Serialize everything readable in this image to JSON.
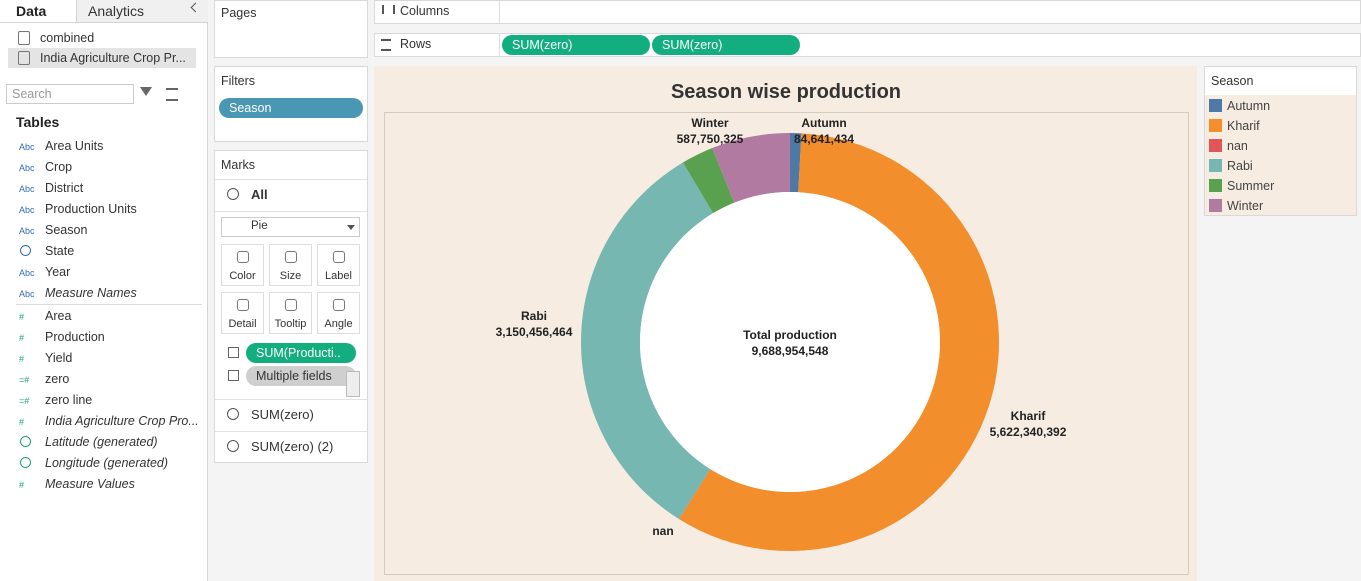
{
  "ui": {
    "data_pane": {
      "tabs": [
        "Data",
        "Analytics"
      ],
      "sources": [
        "combined",
        "India Agriculture Crop Pr..."
      ],
      "search_placeholder": "Search",
      "tables_heading": "Tables",
      "dimensions": [
        {
          "icon": "Abc",
          "name": "Area Units"
        },
        {
          "icon": "Abc",
          "name": "Crop"
        },
        {
          "icon": "Abc",
          "name": "District"
        },
        {
          "icon": "Abc",
          "name": "Production Units"
        },
        {
          "icon": "Abc",
          "name": "Season"
        },
        {
          "name": "State"
        },
        {
          "icon": "Abc",
          "name": "Year"
        },
        {
          "icon": "Abc",
          "name": "Measure Names",
          "italic": true
        }
      ],
      "measures": [
        {
          "icon": "#",
          "name": "Area"
        },
        {
          "icon": "#",
          "name": "Production"
        },
        {
          "icon": "#",
          "name": "Yield"
        },
        {
          "icon": "=#",
          "name": "zero"
        },
        {
          "icon": "=#",
          "name": "zero line"
        },
        {
          "icon": "#",
          "name": "India Agriculture Crop Pro...",
          "italic": true
        },
        {
          "name": "Latitude (generated)",
          "italic": true
        },
        {
          "name": "Longitude (generated)",
          "italic": true
        },
        {
          "icon": "#",
          "name": "Measure Values",
          "italic": true
        }
      ]
    },
    "pages": "Pages",
    "filters": {
      "title": "Filters",
      "pills": [
        "Season"
      ]
    },
    "marks": {
      "title": "Marks",
      "all": "All",
      "mark_type": "Pie",
      "buttons": [
        "Color",
        "Size",
        "Label",
        "Detail",
        "Tooltip",
        "Angle"
      ],
      "pills": [
        "SUM(Producti..",
        "Multiple fields"
      ],
      "layers": [
        "SUM(zero)",
        "SUM(zero) (2)"
      ]
    },
    "columns": "Columns",
    "rows": {
      "label": "Rows",
      "pills": [
        "SUM(zero)",
        "SUM(zero)"
      ]
    }
  },
  "chart_data": {
    "type": "pie",
    "title": "Season wise production",
    "legend_title": "Season",
    "categories": [
      "Autumn",
      "Kharif",
      "nan",
      "Rabi",
      "Summer",
      "Winter"
    ],
    "values": [
      84641434,
      5622340392,
      2000000,
      3150456464,
      241765933,
      587750325
    ],
    "value_labels": [
      "84,641,434",
      "5,622,340,392",
      null,
      "3,150,456,464",
      null,
      "587,750,325"
    ],
    "colors": [
      "#4e79a7",
      "#f28e2b",
      "#e15759",
      "#76b7b2",
      "#59a14f",
      "#b07aa1"
    ],
    "center_label": "Total production",
    "total": {
      "value": 9688954548,
      "label": "9,688,954,548"
    }
  }
}
